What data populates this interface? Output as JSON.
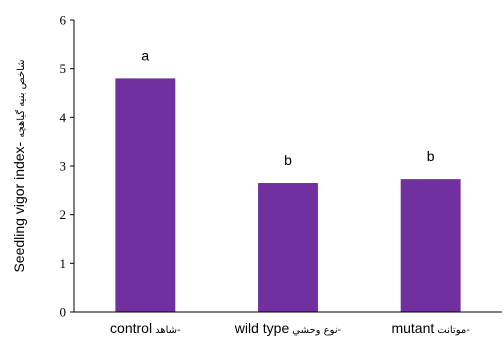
{
  "chart_data": {
    "type": "bar",
    "categories": [
      {
        "fa": "شاهد-",
        "en": "control"
      },
      {
        "fa": "نوع وحشي-",
        "en": "wild type"
      },
      {
        "fa": "موتانت-",
        "en": "mutant"
      }
    ],
    "values": [
      4.8,
      2.65,
      2.73
    ],
    "significance": [
      "a",
      "b",
      "b"
    ],
    "ylabel": {
      "en": "Seedling vigor index-",
      "fa": "شاخص بنیه گیاهچه"
    },
    "ylim": [
      0,
      6
    ],
    "yticks": [
      0,
      1,
      2,
      3,
      4,
      5,
      6
    ],
    "bar_color": "#7030a0",
    "grid": false,
    "legend": "none"
  }
}
